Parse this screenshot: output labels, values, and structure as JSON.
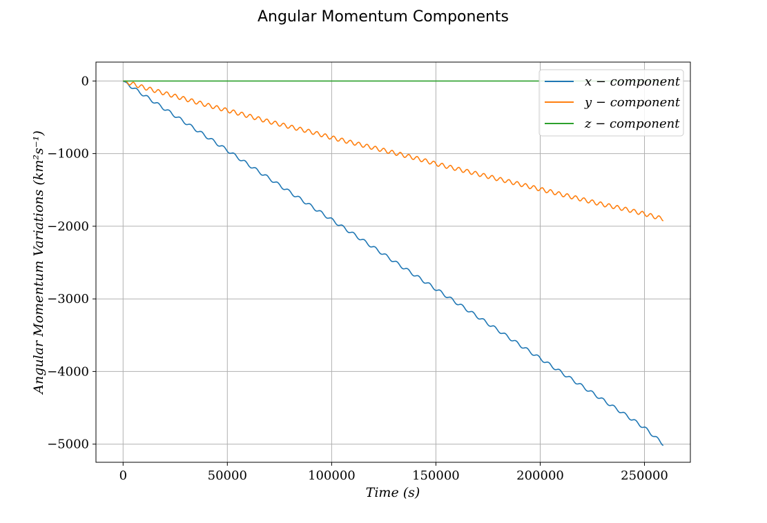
{
  "chart_data": {
    "type": "line",
    "title": "Angular Momentum Components",
    "xlabel": "Time (s)",
    "ylabel": "Angular Momentum Variations (km²s⁻¹)",
    "xlim": [
      -13000,
      272000
    ],
    "ylim": [
      -5250,
      260
    ],
    "x_ticks": [
      0,
      50000,
      100000,
      150000,
      200000,
      250000
    ],
    "x_tick_labels": [
      "0",
      "50000",
      "100000",
      "150000",
      "200000",
      "250000"
    ],
    "y_ticks": [
      0,
      -1000,
      -2000,
      -3000,
      -4000,
      -5000
    ],
    "y_tick_labels": [
      "0",
      "−1000",
      "−2000",
      "−3000",
      "−4000",
      "−5000"
    ],
    "grid": true,
    "legend_position": "top-right",
    "series": [
      {
        "name": "x − component",
        "color": "#1f77b4",
        "x": [
          0,
          10000,
          20000,
          30000,
          40000,
          50000,
          60000,
          70000,
          80000,
          90000,
          100000,
          110000,
          120000,
          130000,
          140000,
          150000,
          160000,
          170000,
          180000,
          190000,
          200000,
          210000,
          220000,
          230000,
          240000,
          250000,
          259000
        ],
        "y": [
          0,
          -195,
          -385,
          -575,
          -765,
          -955,
          -1150,
          -1340,
          -1530,
          -1720,
          -1910,
          -2100,
          -2290,
          -2485,
          -2675,
          -2865,
          -3055,
          -3245,
          -3435,
          -3630,
          -3820,
          -4010,
          -4200,
          -4390,
          -4580,
          -4775,
          -5000
        ],
        "ripple": {
          "period": 5200,
          "amplitude": 22
        }
      },
      {
        "name": "y − component",
        "color": "#ff7f0e",
        "x": [
          0,
          10000,
          20000,
          30000,
          40000,
          50000,
          60000,
          70000,
          80000,
          90000,
          100000,
          110000,
          120000,
          130000,
          140000,
          150000,
          160000,
          170000,
          180000,
          190000,
          200000,
          210000,
          220000,
          230000,
          240000,
          250000,
          259000
        ],
        "y": [
          0,
          -90,
          -170,
          -250,
          -330,
          -405,
          -480,
          -560,
          -630,
          -700,
          -780,
          -850,
          -920,
          -990,
          -1060,
          -1140,
          -1210,
          -1280,
          -1350,
          -1420,
          -1490,
          -1560,
          -1630,
          -1700,
          -1760,
          -1830,
          -1900
        ],
        "ripple": {
          "period": 4000,
          "amplitude": 28
        }
      },
      {
        "name": "z − component",
        "color": "#2ca02c",
        "x": [
          0,
          50000,
          100000,
          150000,
          200000,
          250000,
          259000
        ],
        "y": [
          0,
          0,
          0,
          0,
          0,
          0,
          0
        ]
      }
    ]
  }
}
